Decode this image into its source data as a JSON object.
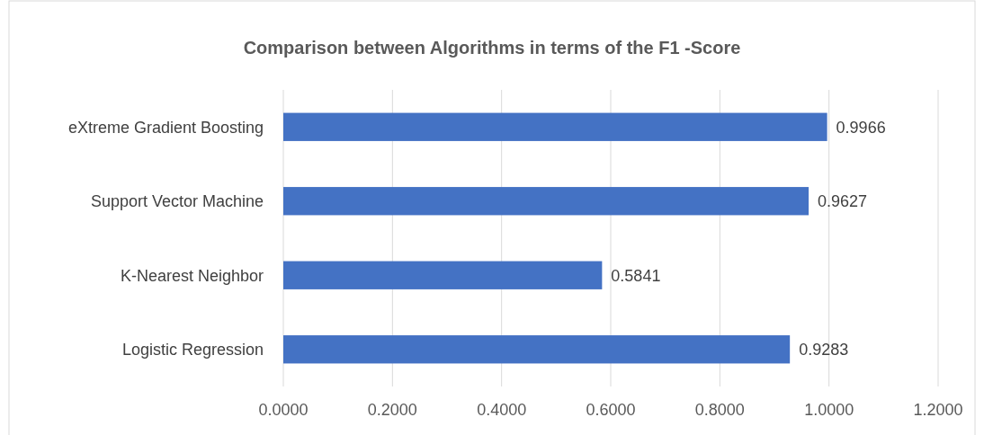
{
  "chart_data": {
    "type": "bar",
    "orientation": "horizontal",
    "title": "Comparison between Algorithms in terms of the F1 -Score",
    "categories": [
      "eXtreme Gradient Boosting",
      "Support Vector Machine",
      "K-Nearest Neighbor",
      "Logistic Regression"
    ],
    "values": [
      0.9966,
      0.9627,
      0.5841,
      0.9283
    ],
    "color": "#4472c4",
    "data_labels": true,
    "xlim": [
      0,
      1.2
    ],
    "xticks": [
      {
        "value": 0,
        "label": "0.0000"
      },
      {
        "value": 0.2,
        "label": "0.2000"
      },
      {
        "value": 0.4,
        "label": "0.4000"
      },
      {
        "value": 0.6,
        "label": "0.6000"
      },
      {
        "value": 0.8,
        "label": "0.8000"
      },
      {
        "value": 1,
        "label": "1.0000"
      },
      {
        "value": 1.2,
        "label": "1.2000"
      }
    ],
    "grid": "x"
  }
}
